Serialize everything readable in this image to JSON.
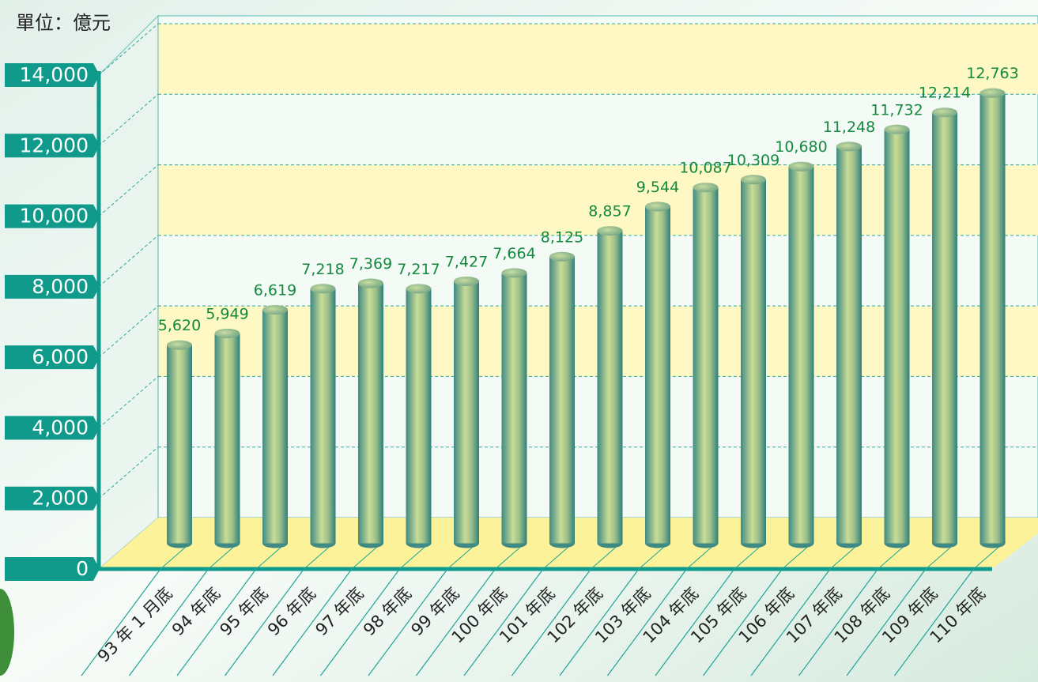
{
  "chart_data": {
    "type": "bar",
    "unit_label": "單位：億元",
    "categories": [
      "93 年 1 月底",
      "94 年底",
      "95 年底",
      "96 年底",
      "97 年底",
      "98 年底",
      "99 年底",
      "100 年底",
      "101 年底",
      "102 年底",
      "103 年底",
      "104 年底",
      "105 年底",
      "106 年底",
      "107 年底",
      "108 年底",
      "109 年底",
      "110 年底"
    ],
    "values": [
      5620,
      5949,
      6619,
      7218,
      7369,
      7217,
      7427,
      7664,
      8125,
      8857,
      9544,
      10087,
      10309,
      10680,
      11248,
      11732,
      12214,
      12763
    ],
    "value_labels": [
      "5,620",
      "5,949",
      "6,619",
      "7,218",
      "7,369",
      "7,217",
      "7,427",
      "7,664",
      "8,125",
      "8,857",
      "9,544",
      "10,087",
      "10,309",
      "10,680",
      "11,248",
      "11,732",
      "12,214",
      "12,763"
    ],
    "color": "#5a9e8a",
    "ylim": [
      0,
      14000
    ],
    "yticks": [
      0,
      {
        "value": 2000,
        "label": "2,000"
      },
      {
        "value": 4000,
        "label": "4,000"
      },
      {
        "value": 6000,
        "label": "6,000"
      },
      {
        "value": 8000,
        "label": "8,000"
      },
      {
        "value": 10000,
        "label": "10,000"
      },
      {
        "value": 12000,
        "label": "12,000"
      },
      {
        "value": 14000,
        "label": "14,000"
      }
    ],
    "grid": true
  }
}
